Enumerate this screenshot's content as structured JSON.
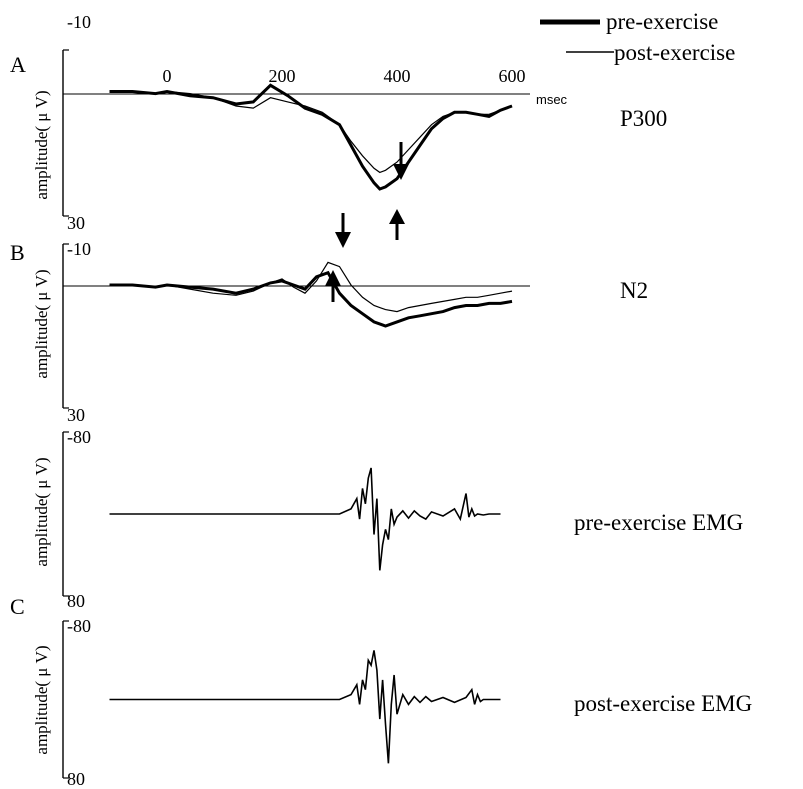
{
  "legend": {
    "pre_label": "pre-exercise",
    "post_label": "post-exercise",
    "position": "top-right"
  },
  "x_axis": {
    "ticks": [
      0,
      200,
      400,
      600
    ],
    "tick_labels": [
      "0",
      "200",
      "400",
      "600"
    ],
    "unit": "msec"
  },
  "colors": {
    "trace": "#000000",
    "background": "#ffffff"
  },
  "chart_data": [
    {
      "id": "A",
      "type": "line",
      "panel_letter": "A",
      "title": "P300",
      "ylabel": "amplitude( μ V)",
      "ylim": [
        -10,
        30
      ],
      "y_tick_labels": [
        "-10",
        "30"
      ],
      "xlim": [
        -100,
        600
      ],
      "series": [
        {
          "name": "pre-exercise",
          "x": [
            -100,
            -60,
            -20,
            0,
            40,
            80,
            120,
            150,
            180,
            210,
            240,
            270,
            300,
            320,
            340,
            360,
            370,
            380,
            400,
            420,
            440,
            460,
            480,
            500,
            520,
            540,
            560,
            580,
            600
          ],
          "y": [
            0,
            0,
            0.5,
            0,
            1,
            1.5,
            3,
            2.5,
            -1.5,
            1,
            4,
            5.5,
            8,
            13,
            18,
            22,
            23.5,
            23,
            21,
            17,
            13,
            9,
            6.5,
            5,
            5,
            5.5,
            6,
            4.5,
            3.5
          ]
        },
        {
          "name": "post-exercise",
          "x": [
            -100,
            -60,
            -20,
            0,
            40,
            80,
            120,
            150,
            180,
            210,
            240,
            270,
            300,
            320,
            340,
            360,
            370,
            380,
            400,
            420,
            440,
            460,
            480,
            500,
            520,
            540,
            560,
            580,
            600
          ],
          "y": [
            0,
            0,
            0.5,
            0,
            0.5,
            1.5,
            3.5,
            4,
            1.5,
            2.5,
            3.5,
            5,
            8,
            12,
            15.5,
            18.5,
            19.5,
            19,
            17,
            14,
            11,
            8,
            6,
            5,
            5,
            5.5,
            5.5,
            4.5,
            3.5
          ]
        }
      ],
      "annotations": [
        {
          "type": "arrow-down",
          "x": 370,
          "target": "post-exercise peak"
        },
        {
          "type": "arrow-up",
          "x": 370,
          "target": "pre-exercise peak"
        }
      ]
    },
    {
      "id": "B",
      "type": "line",
      "panel_letter": "B",
      "title": "N2",
      "ylabel": "amplitude( μ V)",
      "ylim": [
        -10,
        30
      ],
      "y_tick_labels": [
        "-10",
        "30"
      ],
      "xlim": [
        -100,
        600
      ],
      "series": [
        {
          "name": "pre-exercise",
          "x": [
            -100,
            -60,
            -20,
            0,
            40,
            80,
            120,
            150,
            180,
            200,
            220,
            240,
            260,
            280,
            300,
            320,
            340,
            360,
            380,
            400,
            420,
            440,
            460,
            480,
            500,
            520,
            540,
            560,
            580,
            600
          ],
          "y": [
            0,
            0,
            0.5,
            0,
            0.5,
            1,
            2,
            1,
            -0.5,
            -1,
            0,
            1,
            -2,
            -3,
            2,
            5,
            7,
            9,
            10,
            9,
            8,
            7.5,
            7,
            6.5,
            5.5,
            5,
            5,
            4.5,
            4.5,
            4
          ],
          "n_extremum": -3
        },
        {
          "name": "post-exercise",
          "x": [
            -100,
            -60,
            -20,
            0,
            40,
            80,
            120,
            150,
            180,
            200,
            220,
            240,
            260,
            280,
            300,
            320,
            340,
            360,
            380,
            400,
            420,
            440,
            460,
            480,
            500,
            520,
            540,
            560,
            580,
            600
          ],
          "y": [
            0,
            0,
            0.5,
            0,
            1,
            2,
            2.5,
            1.5,
            -0.5,
            -1.5,
            0.5,
            2,
            -1,
            -5.5,
            -4.5,
            0,
            3,
            5,
            6,
            6.5,
            5.5,
            5,
            4.5,
            4,
            3.5,
            3,
            3,
            2.5,
            2,
            1.5
          ],
          "n_extremum": -5.5
        }
      ],
      "annotations": [
        {
          "type": "arrow-down",
          "x": 280,
          "target": "post-exercise N2"
        },
        {
          "type": "arrow-up",
          "x": 270,
          "target": "pre-exercise N2"
        }
      ]
    },
    {
      "id": "EMG-pre",
      "type": "line",
      "title": "pre-exercise EMG",
      "ylabel": "amplitude( μ V)",
      "ylim": [
        -80,
        80
      ],
      "y_tick_labels": [
        "-80",
        "80"
      ],
      "xlim": [
        -100,
        600
      ],
      "series": [
        {
          "name": "pre-exercise EMG",
          "x": [
            -100,
            0,
            100,
            200,
            300,
            320,
            330,
            335,
            340,
            345,
            350,
            355,
            360,
            365,
            370,
            375,
            380,
            385,
            390,
            395,
            400,
            410,
            420,
            430,
            440,
            450,
            460,
            480,
            500,
            510,
            520,
            525,
            530,
            535,
            540,
            550,
            560,
            580
          ],
          "y": [
            0,
            0,
            0,
            0,
            0,
            -5,
            -15,
            5,
            -25,
            -10,
            -35,
            -45,
            20,
            -15,
            55,
            30,
            15,
            25,
            -5,
            10,
            3,
            -3,
            4,
            -3,
            2,
            5,
            -2,
            2,
            -5,
            5,
            -20,
            3,
            -5,
            2,
            0,
            1,
            0,
            0
          ]
        }
      ]
    },
    {
      "id": "C",
      "type": "line",
      "panel_letter": "C",
      "title": "post-exercise EMG",
      "ylabel": "amplitude( μ V)",
      "ylim": [
        -80,
        80
      ],
      "y_tick_labels": [
        "-80",
        "80"
      ],
      "xlim": [
        -100,
        600
      ],
      "series": [
        {
          "name": "post-exercise EMG",
          "x": [
            -100,
            0,
            100,
            200,
            300,
            320,
            330,
            335,
            340,
            345,
            350,
            355,
            360,
            365,
            370,
            375,
            380,
            385,
            390,
            395,
            400,
            410,
            420,
            430,
            440,
            450,
            460,
            480,
            500,
            520,
            530,
            535,
            540,
            545,
            550,
            560,
            580
          ],
          "y": [
            0,
            0,
            0,
            0,
            0,
            -5,
            -15,
            5,
            -20,
            -10,
            -40,
            -35,
            -50,
            -30,
            20,
            -20,
            25,
            65,
            5,
            -25,
            15,
            -5,
            5,
            -3,
            3,
            -3,
            2,
            -2,
            3,
            -2,
            -10,
            5,
            -5,
            2,
            0,
            0,
            0
          ]
        }
      ]
    }
  ]
}
